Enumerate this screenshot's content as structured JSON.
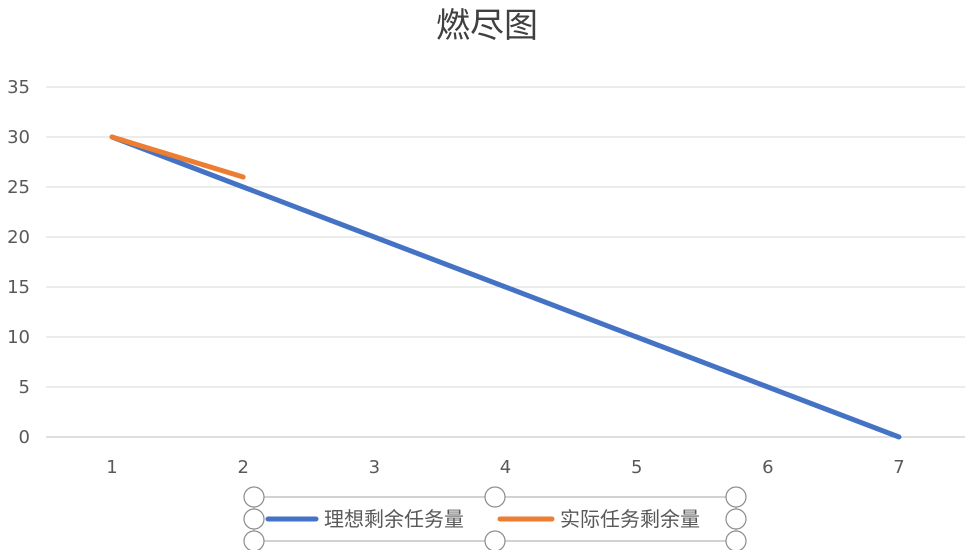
{
  "chart_data": {
    "type": "line",
    "title": "燃尽图",
    "x": [
      1,
      2,
      3,
      4,
      5,
      6,
      7
    ],
    "x_tick_labels": [
      "1",
      "2",
      "3",
      "4",
      "5",
      "6",
      "7"
    ],
    "y_tick_labels": [
      "0",
      "5",
      "10",
      "15",
      "20",
      "25",
      "30",
      "35"
    ],
    "ylim": [
      0,
      35
    ],
    "grid": true,
    "legend_position": "bottom",
    "series": [
      {
        "name": "理想剩余任务量",
        "color": "#4472C4",
        "x": [
          1,
          2,
          3,
          4,
          5,
          6,
          7
        ],
        "values": [
          30,
          25,
          20,
          15,
          10,
          5,
          0
        ]
      },
      {
        "name": "实际任务剩余量",
        "color": "#ED7D31",
        "x": [
          1,
          2
        ],
        "values": [
          30,
          26
        ]
      }
    ]
  }
}
